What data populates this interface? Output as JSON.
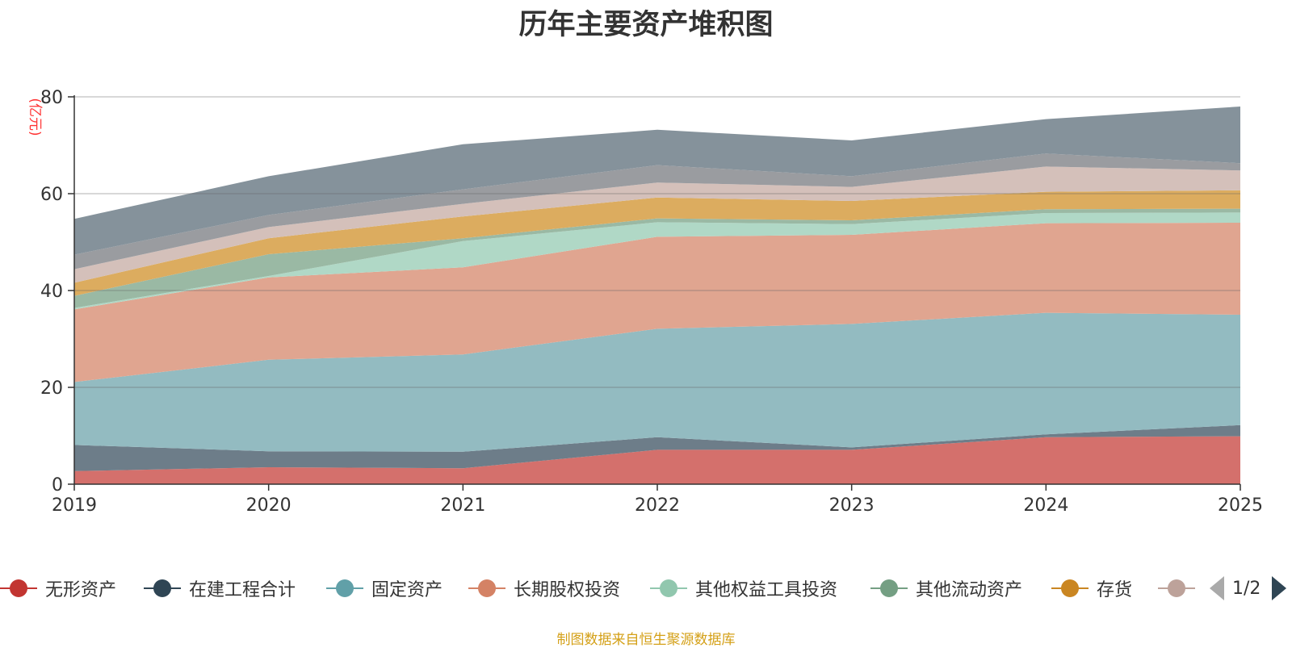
{
  "chart_data": {
    "type": "area",
    "stacked": true,
    "title": "历年主要资产堆积图",
    "ylabel": "(亿元)",
    "xlabel": "",
    "ylim": [
      0,
      80
    ],
    "yticks": [
      0,
      20,
      40,
      60,
      80
    ],
    "grid": true,
    "categories": [
      "2019",
      "2020",
      "2021",
      "2022",
      "2023",
      "2024",
      "2025"
    ],
    "series": [
      {
        "name": "无形资产",
        "color": "#c23531",
        "area_color": "#d4706c",
        "values": [
          2.7,
          3.5,
          3.3,
          7.1,
          7.1,
          9.7,
          9.9
        ]
      },
      {
        "name": "在建工程合计",
        "color": "#2f4554",
        "area_color": "#6d7d89",
        "values": [
          5.4,
          3.3,
          3.4,
          2.6,
          0.5,
          0.6,
          2.3
        ]
      },
      {
        "name": "固定资产",
        "color": "#61a0a8",
        "area_color": "#93bbc1",
        "values": [
          13.0,
          18.9,
          20.1,
          22.4,
          25.5,
          25.1,
          22.8
        ]
      },
      {
        "name": "长期股权投资",
        "color": "#d48265",
        "area_color": "#e0a590",
        "values": [
          15.0,
          17.0,
          18.0,
          19.0,
          18.4,
          18.5,
          19.0
        ]
      },
      {
        "name": "其他权益工具投资",
        "color": "#91c7ae",
        "area_color": "#b0d8c6",
        "values": [
          0.3,
          0.3,
          5.4,
          3.0,
          2.2,
          2.1,
          2.1
        ]
      },
      {
        "name": "其他流动资产",
        "color": "#749f83",
        "area_color": "#9ab9a4",
        "values": [
          2.5,
          4.5,
          0.6,
          0.8,
          0.8,
          0.8,
          0.8
        ]
      },
      {
        "name": "存货",
        "color": "#ca8622",
        "area_color": "#dcac5f",
        "values": [
          2.7,
          3.3,
          4.5,
          4.3,
          4.0,
          3.6,
          3.8
        ]
      },
      {
        "name": "",
        "color": "#bda29a",
        "area_color": "#d4c0ba",
        "values": [
          2.8,
          2.3,
          2.6,
          3.1,
          2.9,
          5.2,
          4.1
        ]
      },
      {
        "name": "",
        "color": "#6e7074",
        "area_color": "#9a9ca0",
        "values": [
          3.0,
          2.5,
          3.0,
          3.6,
          2.2,
          2.7,
          1.5
        ]
      },
      {
        "name": "",
        "color": "#546570",
        "area_color": "#85929b",
        "values": [
          7.4,
          8.0,
          9.3,
          7.3,
          7.4,
          7.1,
          11.7
        ]
      }
    ]
  },
  "legend": {
    "page_text": "1/2"
  },
  "footer": "制图数据来自恒生聚源数据库"
}
